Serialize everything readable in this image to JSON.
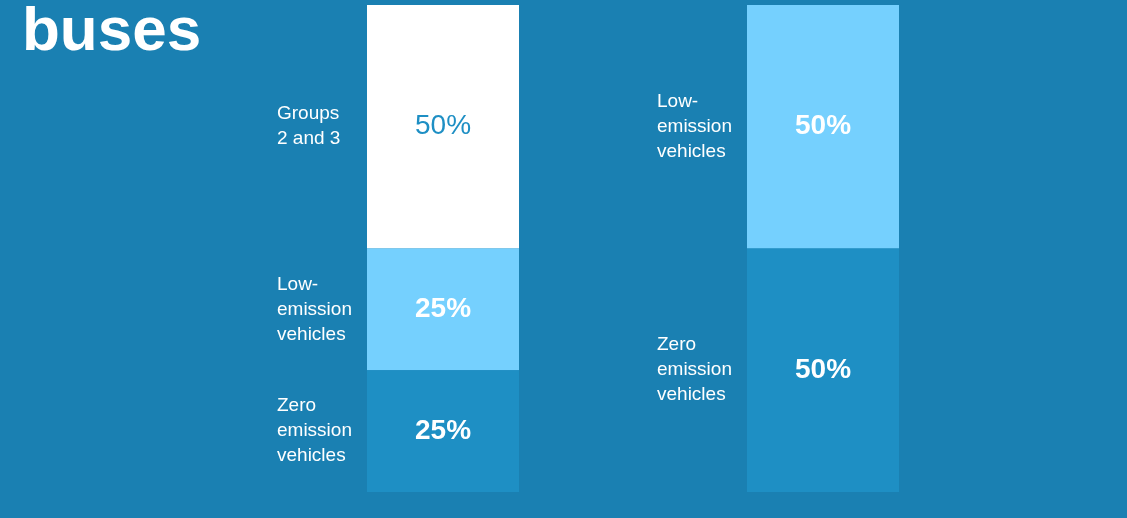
{
  "chart_data": {
    "type": "bar",
    "title": "buses",
    "categories": [
      null,
      null
    ],
    "stacked": true,
    "legend": false,
    "series": [
      {
        "name": "Zero emission vehicles",
        "color": "#1e8fc4",
        "values": [
          25,
          50
        ],
        "value_labels": [
          "25%",
          "50%"
        ]
      },
      {
        "name": "Low-emission vehicles",
        "color": "#75d0fe",
        "values": [
          25,
          50
        ],
        "value_labels": [
          "25%",
          "50%"
        ]
      },
      {
        "name": "Groups 2 and 3",
        "color": "#ffffff",
        "values": [
          50,
          null
        ],
        "value_labels": [
          "50%",
          null
        ]
      }
    ]
  }
}
